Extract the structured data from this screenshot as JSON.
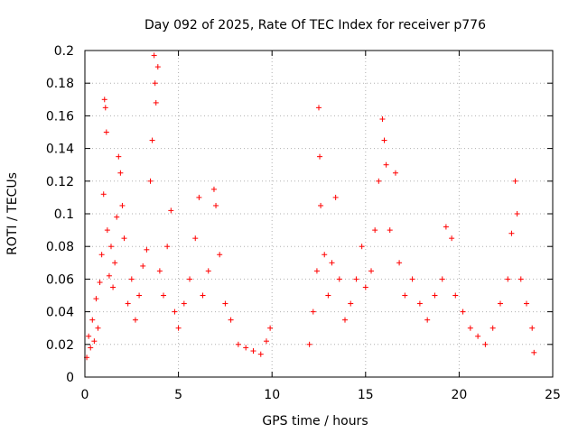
{
  "chart_data": {
    "type": "scatter",
    "title": "Day 092 of 2025, Rate Of TEC Index for receiver p776",
    "xlabel": "GPS time / hours",
    "ylabel": "ROTI / TECUs",
    "xlim": [
      0,
      25
    ],
    "ylim": [
      0,
      0.2
    ],
    "x_ticks": [
      0,
      5,
      10,
      15,
      20,
      25
    ],
    "x_tick_labels": [
      "0",
      "5",
      "10",
      "15",
      "20",
      "25"
    ],
    "y_ticks": [
      0,
      0.02,
      0.04,
      0.06,
      0.08,
      0.1,
      0.12,
      0.14,
      0.16,
      0.18,
      0.2
    ],
    "y_tick_labels": [
      "0",
      "0.02",
      "0.04",
      "0.06",
      "0.08",
      "0.1",
      "0.12",
      "0.14",
      "0.16",
      "0.18",
      "0.2"
    ],
    "grid": true,
    "marker": "plus",
    "color": "#ff0000",
    "series": [
      {
        "points": [
          [
            0.1,
            0.012
          ],
          [
            0.2,
            0.025
          ],
          [
            0.3,
            0.018
          ],
          [
            0.4,
            0.035
          ],
          [
            0.5,
            0.022
          ],
          [
            0.6,
            0.048
          ],
          [
            0.7,
            0.03
          ],
          [
            0.8,
            0.058
          ],
          [
            0.9,
            0.075
          ],
          [
            1.0,
            0.112
          ],
          [
            1.05,
            0.17
          ],
          [
            1.1,
            0.165
          ],
          [
            1.15,
            0.15
          ],
          [
            1.2,
            0.09
          ],
          [
            1.3,
            0.062
          ],
          [
            1.4,
            0.08
          ],
          [
            1.5,
            0.055
          ],
          [
            1.6,
            0.07
          ],
          [
            1.7,
            0.098
          ],
          [
            1.8,
            0.135
          ],
          [
            1.9,
            0.125
          ],
          [
            2.0,
            0.105
          ],
          [
            2.1,
            0.085
          ],
          [
            2.3,
            0.045
          ],
          [
            2.5,
            0.06
          ],
          [
            2.7,
            0.035
          ],
          [
            2.9,
            0.05
          ],
          [
            3.1,
            0.068
          ],
          [
            3.3,
            0.078
          ],
          [
            3.5,
            0.12
          ],
          [
            3.6,
            0.145
          ],
          [
            3.7,
            0.197
          ],
          [
            3.75,
            0.18
          ],
          [
            3.8,
            0.168
          ],
          [
            3.9,
            0.19
          ],
          [
            4.0,
            0.065
          ],
          [
            4.2,
            0.05
          ],
          [
            4.4,
            0.08
          ],
          [
            4.6,
            0.102
          ],
          [
            4.8,
            0.04
          ],
          [
            5.0,
            0.03
          ],
          [
            5.3,
            0.045
          ],
          [
            5.6,
            0.06
          ],
          [
            5.9,
            0.085
          ],
          [
            6.1,
            0.11
          ],
          [
            6.3,
            0.05
          ],
          [
            6.6,
            0.065
          ],
          [
            6.9,
            0.115
          ],
          [
            7.0,
            0.105
          ],
          [
            7.2,
            0.075
          ],
          [
            7.5,
            0.045
          ],
          [
            7.8,
            0.035
          ],
          [
            8.2,
            0.02
          ],
          [
            8.6,
            0.018
          ],
          [
            9.0,
            0.016
          ],
          [
            9.4,
            0.014
          ],
          [
            9.7,
            0.022
          ],
          [
            9.9,
            0.03
          ],
          [
            12.0,
            0.02
          ],
          [
            12.2,
            0.04
          ],
          [
            12.4,
            0.065
          ],
          [
            12.5,
            0.165
          ],
          [
            12.55,
            0.135
          ],
          [
            12.6,
            0.105
          ],
          [
            12.8,
            0.075
          ],
          [
            13.0,
            0.05
          ],
          [
            13.2,
            0.07
          ],
          [
            13.4,
            0.11
          ],
          [
            13.6,
            0.06
          ],
          [
            13.9,
            0.035
          ],
          [
            14.2,
            0.045
          ],
          [
            14.5,
            0.06
          ],
          [
            14.8,
            0.08
          ],
          [
            15.0,
            0.055
          ],
          [
            15.3,
            0.065
          ],
          [
            15.5,
            0.09
          ],
          [
            15.7,
            0.12
          ],
          [
            15.9,
            0.158
          ],
          [
            16.0,
            0.145
          ],
          [
            16.1,
            0.13
          ],
          [
            16.3,
            0.09
          ],
          [
            16.6,
            0.125
          ],
          [
            16.8,
            0.07
          ],
          [
            17.1,
            0.05
          ],
          [
            17.5,
            0.06
          ],
          [
            17.9,
            0.045
          ],
          [
            18.3,
            0.035
          ],
          [
            18.7,
            0.05
          ],
          [
            19.1,
            0.06
          ],
          [
            19.3,
            0.092
          ],
          [
            19.6,
            0.085
          ],
          [
            19.8,
            0.05
          ],
          [
            20.2,
            0.04
          ],
          [
            20.6,
            0.03
          ],
          [
            21.0,
            0.025
          ],
          [
            21.4,
            0.02
          ],
          [
            21.8,
            0.03
          ],
          [
            22.2,
            0.045
          ],
          [
            22.6,
            0.06
          ],
          [
            22.8,
            0.088
          ],
          [
            23.0,
            0.12
          ],
          [
            23.1,
            0.1
          ],
          [
            23.3,
            0.06
          ],
          [
            23.6,
            0.045
          ],
          [
            23.9,
            0.03
          ],
          [
            24.0,
            0.015
          ]
        ]
      }
    ]
  }
}
